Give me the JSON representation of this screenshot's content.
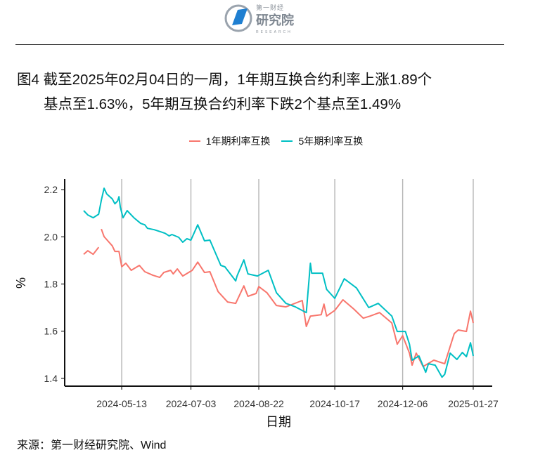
{
  "header": {
    "logo_text_cn_small": "第一财经",
    "logo_text_cn": "研究院",
    "logo_text_en": "RESEARCH"
  },
  "title": {
    "line1": "图4  截至2025年02月04日的一周，1年期互换合约利率上涨1.89个",
    "line2": "基点至1.63%，5年期互换合约利率下跌2个基点至1.49%"
  },
  "source": "来源：第一财经研究院、Wind",
  "chart_data": {
    "type": "line",
    "xlabel": "日期",
    "ylabel": "%",
    "ylim": [
      1.367,
      2.245
    ],
    "xlim": [
      "2024-04-01",
      "2025-02-10"
    ],
    "yticks": [
      1.4,
      1.6,
      1.8,
      2.0,
      2.2
    ],
    "ytick_labels": [
      "1.4",
      "1.6",
      "1.8",
      "2.0",
      "2.2"
    ],
    "xticks": [
      "2024-05-13",
      "2024-07-03",
      "2024-08-22",
      "2024-10-17",
      "2024-12-06",
      "2025-01-27"
    ],
    "grid": "vertical-major",
    "legend": "top",
    "series": [
      {
        "name": "1年期利率互换",
        "color": "#F8766D",
        "points": [
          [
            "2024-04-15",
            1.926
          ],
          [
            "2024-04-18",
            1.941
          ],
          [
            "2024-04-22",
            1.926
          ],
          [
            "2024-04-26",
            1.956
          ],
          null,
          [
            "2024-04-28",
            2.033
          ],
          [
            "2024-04-30",
            2.001
          ],
          [
            "2024-05-06",
            1.962
          ],
          [
            "2024-05-08",
            1.938
          ],
          [
            "2024-05-11",
            1.938
          ],
          [
            "2024-05-13",
            1.873
          ],
          [
            "2024-05-16",
            1.888
          ],
          [
            "2024-05-20",
            1.858
          ],
          [
            "2024-05-26",
            1.879
          ],
          [
            "2024-05-30",
            1.852
          ],
          [
            "2024-06-05",
            1.837
          ],
          [
            "2024-06-10",
            1.828
          ],
          [
            "2024-06-13",
            1.849
          ],
          [
            "2024-06-18",
            1.858
          ],
          [
            "2024-06-20",
            1.843
          ],
          [
            "2024-06-23",
            1.864
          ],
          [
            "2024-06-27",
            1.834
          ],
          [
            "2024-07-04",
            1.858
          ],
          [
            "2024-07-08",
            1.893
          ],
          [
            "2024-07-13",
            1.849
          ],
          [
            "2024-07-17",
            1.852
          ],
          [
            "2024-07-23",
            1.768
          ],
          [
            "2024-07-30",
            1.724
          ],
          [
            "2024-08-05",
            1.718
          ],
          [
            "2024-08-11",
            1.792
          ],
          [
            "2024-08-14",
            1.748
          ],
          [
            "2024-08-20",
            1.76
          ],
          [
            "2024-08-22",
            1.789
          ],
          [
            "2024-08-28",
            1.763
          ],
          [
            "2024-09-04",
            1.709
          ],
          [
            "2024-09-11",
            1.703
          ],
          [
            "2024-09-23",
            1.73
          ],
          [
            "2024-09-26",
            1.62
          ],
          [
            "2024-09-29",
            1.664
          ],
          [
            "2024-10-07",
            1.67
          ],
          [
            "2024-10-09",
            1.715
          ],
          [
            "2024-10-11",
            1.664
          ],
          [
            "2024-10-17",
            1.688
          ],
          [
            "2024-10-23",
            1.733
          ],
          [
            "2024-10-31",
            1.694
          ],
          [
            "2024-11-07",
            1.655
          ],
          [
            "2024-11-12",
            1.664
          ],
          [
            "2024-11-19",
            1.679
          ],
          [
            "2024-11-28",
            1.635
          ],
          [
            "2024-12-02",
            1.545
          ],
          [
            "2024-12-06",
            1.581
          ],
          [
            "2024-12-11",
            1.507
          ],
          [
            "2024-12-13",
            1.456
          ],
          [
            "2024-12-16",
            1.507
          ],
          [
            "2024-12-21",
            1.45
          ],
          [
            "2024-12-29",
            1.477
          ],
          [
            "2025-01-06",
            1.462
          ],
          [
            "2025-01-13",
            1.59
          ],
          [
            "2025-01-16",
            1.605
          ],
          [
            "2025-01-22",
            1.599
          ],
          [
            "2025-01-25",
            1.685
          ],
          [
            "2025-01-27",
            1.635
          ]
        ]
      },
      {
        "name": "5年期利率互换",
        "color": "#00BFC4",
        "points": [
          [
            "2024-04-15",
            2.111
          ],
          [
            "2024-04-18",
            2.093
          ],
          [
            "2024-04-22",
            2.081
          ],
          [
            "2024-04-26",
            2.096
          ],
          [
            "2024-04-28",
            2.155
          ],
          [
            "2024-04-30",
            2.206
          ],
          [
            "2024-05-02",
            2.182
          ],
          [
            "2024-05-06",
            2.161
          ],
          [
            "2024-05-08",
            2.14
          ],
          [
            "2024-05-10",
            2.152
          ],
          [
            "2024-05-11",
            2.17
          ],
          [
            "2024-05-12",
            2.126
          ],
          [
            "2024-05-14",
            2.081
          ],
          [
            "2024-05-17",
            2.111
          ],
          [
            "2024-05-22",
            2.081
          ],
          [
            "2024-05-27",
            2.057
          ],
          [
            "2024-05-30",
            2.051
          ],
          [
            "2024-06-01",
            2.036
          ],
          [
            "2024-06-06",
            2.03
          ],
          [
            "2024-06-11",
            2.021
          ],
          [
            "2024-06-14",
            2.015
          ],
          [
            "2024-06-17",
            2.004
          ],
          [
            "2024-06-19",
            2.01
          ],
          [
            "2024-06-24",
            1.998
          ],
          [
            "2024-06-27",
            1.977
          ],
          [
            "2024-06-30",
            1.992
          ],
          [
            "2024-07-03",
            1.986
          ],
          [
            "2024-07-08",
            2.051
          ],
          [
            "2024-07-13",
            1.983
          ],
          [
            "2024-07-17",
            1.986
          ],
          [
            "2024-07-25",
            1.879
          ],
          [
            "2024-07-28",
            1.873
          ],
          [
            "2024-08-05",
            1.813
          ],
          [
            "2024-08-06",
            1.834
          ],
          [
            "2024-08-11",
            1.902
          ],
          [
            "2024-08-14",
            1.843
          ],
          [
            "2024-08-21",
            1.834
          ],
          [
            "2024-08-29",
            1.858
          ],
          [
            "2024-09-04",
            1.763
          ],
          [
            "2024-09-11",
            1.718
          ],
          [
            "2024-09-18",
            1.703
          ],
          [
            "2024-09-26",
            1.679
          ],
          [
            "2024-09-29",
            1.888
          ],
          [
            "2024-09-30",
            1.846
          ],
          [
            "2024-10-08",
            1.846
          ],
          [
            "2024-10-11",
            1.777
          ],
          [
            "2024-10-17",
            1.739
          ],
          [
            "2024-10-24",
            1.822
          ],
          [
            "2024-11-02",
            1.783
          ],
          [
            "2024-11-11",
            1.7
          ],
          [
            "2024-11-18",
            1.718
          ],
          [
            "2024-11-28",
            1.664
          ],
          [
            "2024-12-02",
            1.599
          ],
          [
            "2024-12-08",
            1.599
          ],
          [
            "2024-12-11",
            1.545
          ],
          [
            "2024-12-13",
            1.477
          ],
          [
            "2024-12-18",
            1.495
          ],
          [
            "2024-12-23",
            1.426
          ],
          [
            "2024-12-25",
            1.462
          ],
          [
            "2024-12-30",
            1.456
          ],
          [
            "2025-01-04",
            1.405
          ],
          [
            "2025-01-06",
            1.417
          ],
          [
            "2025-01-10",
            1.507
          ],
          [
            "2025-01-15",
            1.48
          ],
          [
            "2025-01-19",
            1.51
          ],
          [
            "2025-01-22",
            1.492
          ],
          [
            "2025-01-25",
            1.551
          ],
          [
            "2025-01-27",
            1.495
          ]
        ]
      }
    ]
  }
}
